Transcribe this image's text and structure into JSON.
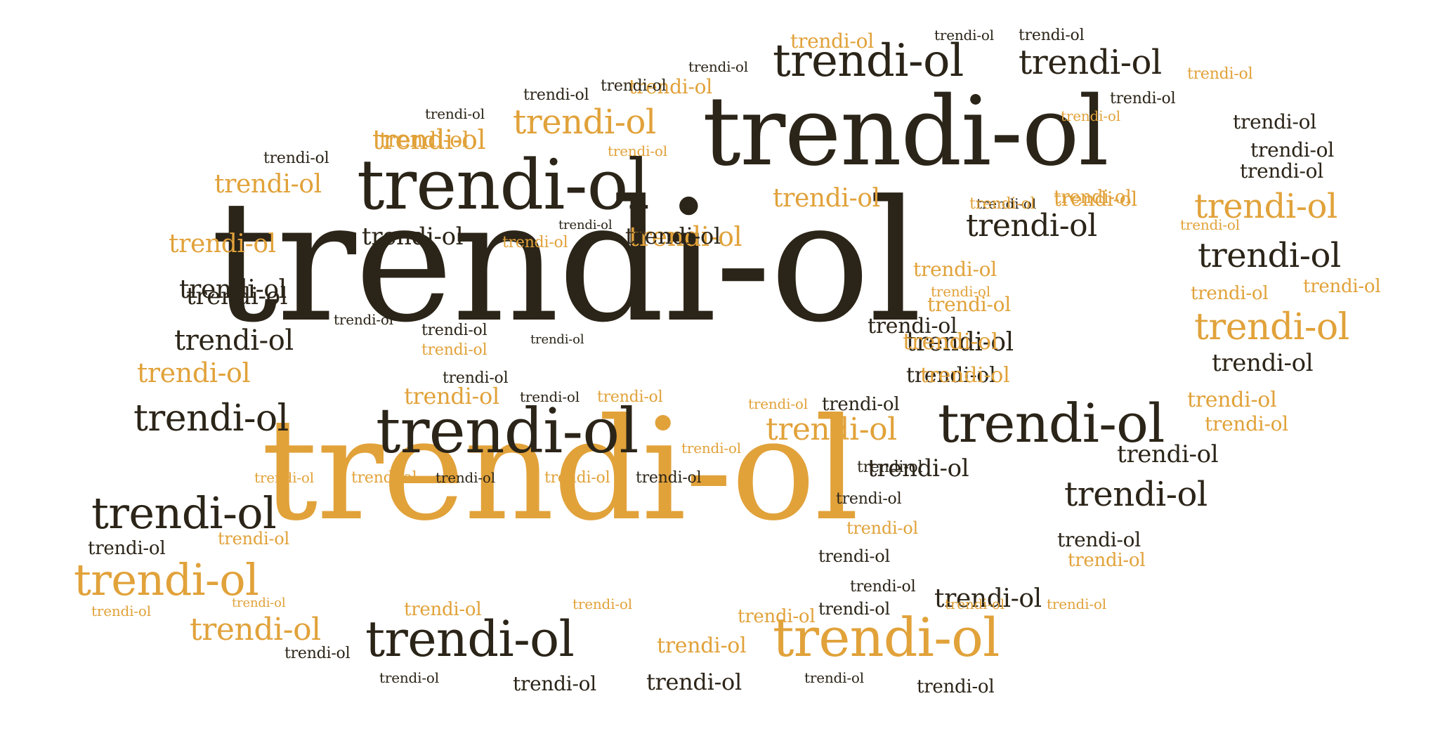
{
  "word_cloud": {
    "word": "trendi-ol",
    "dark_color": "#2b2418",
    "accent_color": "#e1a23a",
    "background": "#ffffff",
    "words": [
      {
        "text": "trendi-ol",
        "color": "dark"
      },
      {
        "text": "trendi-ol",
        "color": "accent"
      },
      {
        "text": "trendi-ol",
        "color": "dark"
      },
      {
        "text": "trendi-ol",
        "color": "dark"
      },
      {
        "text": "trendi-ol",
        "color": "dark"
      },
      {
        "text": "trendi-ol",
        "color": "dark"
      },
      {
        "text": "trendi-ol",
        "color": "accent"
      },
      {
        "text": "trendi-ol",
        "color": "dark"
      },
      {
        "text": "trendi-ol",
        "color": "dark"
      },
      {
        "text": "trendi-ol",
        "color": "dark"
      },
      {
        "text": "trendi-ol",
        "color": "accent"
      },
      {
        "text": "trendi-ol",
        "color": "dark"
      },
      {
        "text": "trendi-ol",
        "color": "accent"
      },
      {
        "text": "trendi-ol",
        "color": "accent"
      },
      {
        "text": "trendi-ol",
        "color": "accent"
      },
      {
        "text": "trendi-ol",
        "color": "dark"
      },
      {
        "text": "trendi-ol",
        "color": "accent"
      },
      {
        "text": "trendi-ol",
        "color": "dark"
      },
      {
        "text": "trendi-ol",
        "color": "accent"
      },
      {
        "text": "trendi-ol",
        "color": "dark"
      },
      {
        "text": "trendi-ol",
        "color": "dark"
      },
      {
        "text": "trendi-ol",
        "color": "accent"
      },
      {
        "text": "trendi-ol",
        "color": "accent"
      },
      {
        "text": "trendi-ol",
        "color": "dark"
      },
      {
        "text": "trendi-ol",
        "color": "dark"
      },
      {
        "text": "trendi-ol",
        "color": "dark"
      },
      {
        "text": "trendi-ol",
        "color": "accent"
      },
      {
        "text": "trendi-ol",
        "color": "accent"
      },
      {
        "text": "trendi-ol",
        "color": "dark"
      },
      {
        "text": "trendi-ol",
        "color": "accent"
      },
      {
        "text": "trendi-ol",
        "color": "accent"
      },
      {
        "text": "trendi-ol",
        "color": "dark"
      },
      {
        "text": "trendi-ol",
        "color": "accent"
      },
      {
        "text": "trendi-ol",
        "color": "dark"
      },
      {
        "text": "trendi-ol",
        "color": "dark"
      },
      {
        "text": "trendi-ol",
        "color": "dark"
      },
      {
        "text": "trendi-ol",
        "color": "dark"
      },
      {
        "text": "trendi-ol",
        "color": "accent"
      },
      {
        "text": "trendi-ol",
        "color": "accent"
      },
      {
        "text": "trendi-ol",
        "color": "dark"
      },
      {
        "text": "trendi-ol",
        "color": "accent"
      },
      {
        "text": "trendi-ol",
        "color": "dark"
      },
      {
        "text": "trendi-ol",
        "color": "accent"
      },
      {
        "text": "trendi-ol",
        "color": "dark"
      },
      {
        "text": "trendi-ol",
        "color": "dark"
      },
      {
        "text": "trendi-ol",
        "color": "dark"
      },
      {
        "text": "trendi-ol",
        "color": "accent"
      },
      {
        "text": "trendi-ol",
        "color": "accent"
      },
      {
        "text": "trendi-ol",
        "color": "dark"
      },
      {
        "text": "trendi-ol",
        "color": "dark"
      },
      {
        "text": "trendi-ol",
        "color": "accent"
      },
      {
        "text": "trendi-ol",
        "color": "dark"
      },
      {
        "text": "trendi-ol",
        "color": "accent"
      },
      {
        "text": "trendi-ol",
        "color": "dark"
      },
      {
        "text": "trendi-ol",
        "color": "accent"
      },
      {
        "text": "trendi-ol",
        "color": "accent"
      },
      {
        "text": "trendi-ol",
        "color": "accent"
      },
      {
        "text": "trendi-ol",
        "color": "accent"
      },
      {
        "text": "trendi-ol",
        "color": "dark"
      },
      {
        "text": "trendi-ol",
        "color": "dark"
      },
      {
        "text": "trendi-ol",
        "color": "accent"
      },
      {
        "text": "trendi-ol",
        "color": "accent"
      },
      {
        "text": "trendi-ol",
        "color": "dark"
      },
      {
        "text": "trendi-ol",
        "color": "accent"
      },
      {
        "text": "trendi-ol",
        "color": "dark"
      },
      {
        "text": "trendi-ol",
        "color": "dark"
      },
      {
        "text": "trendi-ol",
        "color": "dark"
      },
      {
        "text": "trendi-ol",
        "color": "accent"
      },
      {
        "text": "trendi-ol",
        "color": "dark"
      },
      {
        "text": "trendi-ol",
        "color": "dark"
      },
      {
        "text": "trendi-ol",
        "color": "accent"
      },
      {
        "text": "trendi-ol",
        "color": "dark"
      },
      {
        "text": "trendi-ol",
        "color": "accent"
      },
      {
        "text": "trendi-ol",
        "color": "accent"
      },
      {
        "text": "trendi-ol",
        "color": "accent"
      },
      {
        "text": "trendi-ol",
        "color": "accent"
      },
      {
        "text": "trendi-ol",
        "color": "dark"
      },
      {
        "text": "trendi-ol",
        "color": "accent"
      },
      {
        "text": "trendi-ol",
        "color": "dark"
      },
      {
        "text": "trendi-ol",
        "color": "accent"
      },
      {
        "text": "trendi-ol",
        "color": "dark"
      },
      {
        "text": "trendi-ol",
        "color": "accent"
      },
      {
        "text": "trendi-ol",
        "color": "dark"
      },
      {
        "text": "trendi-ol",
        "color": "accent"
      },
      {
        "text": "trendi-ol",
        "color": "dark"
      },
      {
        "text": "trendi-ol",
        "color": "accent"
      },
      {
        "text": "trendi-ol",
        "color": "dark"
      },
      {
        "text": "trendi-ol",
        "color": "accent"
      },
      {
        "text": "trendi-ol",
        "color": "dark"
      },
      {
        "text": "trendi-ol",
        "color": "dark"
      },
      {
        "text": "trendi-ol",
        "color": "accent"
      },
      {
        "text": "trendi-ol",
        "color": "dark"
      },
      {
        "text": "trendi-ol",
        "color": "accent"
      },
      {
        "text": "trendi-ol",
        "color": "dark"
      },
      {
        "text": "trendi-ol",
        "color": "accent"
      },
      {
        "text": "trendi-ol",
        "color": "dark"
      },
      {
        "text": "trendi-ol",
        "color": "accent"
      },
      {
        "text": "trendi-ol",
        "color": "dark"
      },
      {
        "text": "trendi-ol",
        "color": "accent"
      },
      {
        "text": "trendi-ol",
        "color": "dark"
      },
      {
        "text": "trendi-ol",
        "color": "accent"
      },
      {
        "text": "trendi-ol",
        "color": "accent"
      },
      {
        "text": "trendi-ol",
        "color": "accent"
      },
      {
        "text": "trendi-ol",
        "color": "dark"
      },
      {
        "text": "trendi-ol",
        "color": "accent"
      },
      {
        "text": "trendi-ol",
        "color": "dark"
      },
      {
        "text": "trendi-ol",
        "color": "accent"
      },
      {
        "text": "trendi-ol",
        "color": "dark"
      },
      {
        "text": "trendi-ol",
        "color": "accent"
      },
      {
        "text": "trendi-ol",
        "color": "dark"
      },
      {
        "text": "trendi-ol",
        "color": "dark"
      },
      {
        "text": "trendi-ol",
        "color": "dark"
      }
    ]
  }
}
